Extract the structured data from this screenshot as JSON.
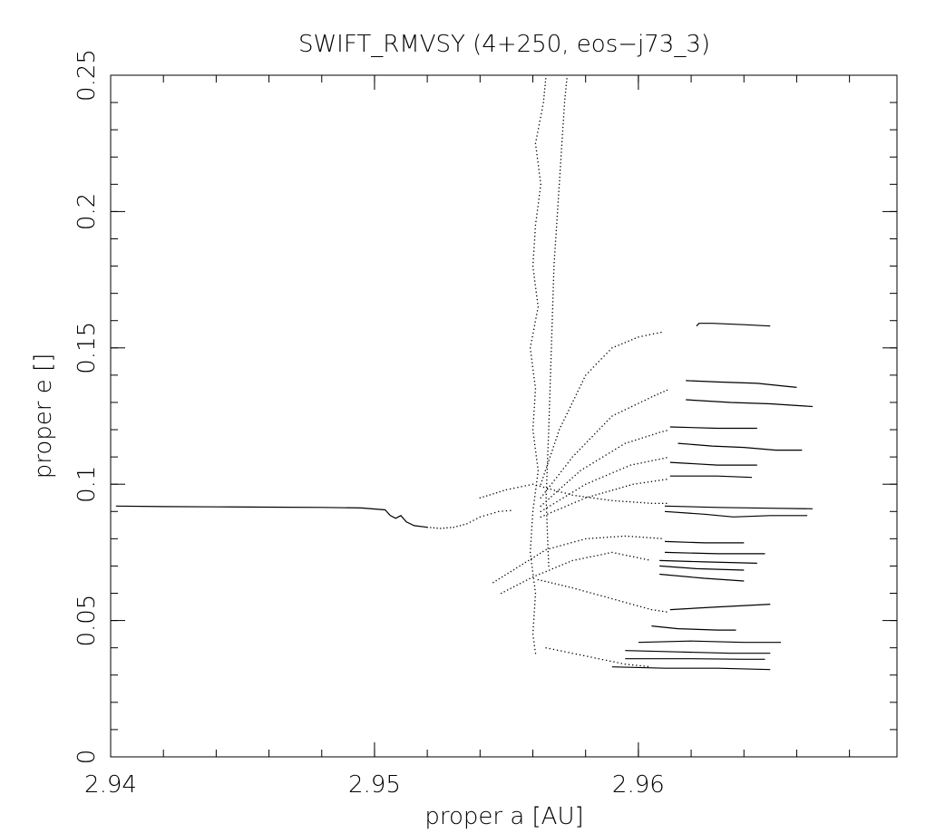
{
  "chart_data": {
    "type": "scatter",
    "title": "SWIFT_RMVSY (4+250, eos−j73_3)",
    "xlabel": "proper a [AU]",
    "ylabel": "proper e []",
    "xlim": [
      2.94,
      2.9698
    ],
    "ylim": [
      0,
      0.25
    ],
    "x_ticks": [
      {
        "value": 2.94,
        "label": "2.94"
      },
      {
        "value": 2.95,
        "label": "2.95"
      },
      {
        "value": 2.96,
        "label": "2.96"
      }
    ],
    "y_ticks": [
      {
        "value": 0,
        "label": "0"
      },
      {
        "value": 0.05,
        "label": "0.05"
      },
      {
        "value": 0.1,
        "label": "0.1"
      },
      {
        "value": 0.15,
        "label": "0.15"
      },
      {
        "value": 0.2,
        "label": "0.2"
      },
      {
        "value": 0.25,
        "label": "0.25"
      }
    ],
    "x_minor_step": 0.002,
    "y_minor_step": 0.01,
    "grid": false,
    "legend": "none",
    "series": [
      {
        "name": "",
        "style": "line",
        "points": [
          [
            2.9402,
            0.092
          ],
          [
            2.942,
            0.0918
          ],
          [
            2.944,
            0.0917
          ],
          [
            2.946,
            0.0916
          ],
          [
            2.948,
            0.0915
          ],
          [
            2.9495,
            0.0913
          ],
          [
            2.9504,
            0.0906
          ],
          [
            2.9506,
            0.0885
          ],
          [
            2.9508,
            0.0875
          ],
          [
            2.951,
            0.0885
          ],
          [
            2.9512,
            0.0862
          ],
          [
            2.9515,
            0.0848
          ],
          [
            2.952,
            0.0842
          ]
        ]
      },
      {
        "name": "",
        "style": "dots",
        "points": [
          [
            2.952,
            0.0842
          ],
          [
            2.9525,
            0.0838
          ],
          [
            2.953,
            0.0842
          ],
          [
            2.9535,
            0.0855
          ],
          [
            2.954,
            0.088
          ],
          [
            2.9547,
            0.09
          ],
          [
            2.9553,
            0.0905
          ]
        ]
      },
      {
        "name": "",
        "style": "dots",
        "points": [
          [
            2.9561,
            0.038
          ],
          [
            2.956,
            0.045
          ],
          [
            2.9561,
            0.06
          ],
          [
            2.9559,
            0.075
          ],
          [
            2.956,
            0.09
          ],
          [
            2.9562,
            0.105
          ],
          [
            2.956,
            0.12
          ],
          [
            2.9561,
            0.135
          ],
          [
            2.9559,
            0.15
          ],
          [
            2.9562,
            0.165
          ],
          [
            2.956,
            0.18
          ],
          [
            2.9561,
            0.195
          ],
          [
            2.9563,
            0.21
          ],
          [
            2.9561,
            0.225
          ],
          [
            2.9564,
            0.24
          ],
          [
            2.9565,
            0.25
          ]
        ]
      },
      {
        "name": "",
        "style": "dots",
        "points": [
          [
            2.9566,
            0.07
          ],
          [
            2.9565,
            0.095
          ],
          [
            2.9566,
            0.12
          ],
          [
            2.9567,
            0.15
          ],
          [
            2.9568,
            0.18
          ],
          [
            2.957,
            0.21
          ],
          [
            2.9572,
            0.24
          ],
          [
            2.9573,
            0.25
          ]
        ]
      },
      {
        "name": "",
        "style": "dots",
        "points": [
          [
            2.9563,
            0.1
          ],
          [
            2.957,
            0.12
          ],
          [
            2.958,
            0.14
          ],
          [
            2.959,
            0.15
          ],
          [
            2.96,
            0.154
          ],
          [
            2.961,
            0.156
          ]
        ]
      },
      {
        "name": "",
        "style": "dots",
        "points": [
          [
            2.9563,
            0.095
          ],
          [
            2.9575,
            0.11
          ],
          [
            2.959,
            0.125
          ],
          [
            2.9605,
            0.132
          ],
          [
            2.9612,
            0.135
          ]
        ]
      },
      {
        "name": "",
        "style": "dots",
        "points": [
          [
            2.9563,
            0.092
          ],
          [
            2.9578,
            0.105
          ],
          [
            2.9595,
            0.115
          ],
          [
            2.9608,
            0.119
          ],
          [
            2.9612,
            0.12
          ]
        ]
      },
      {
        "name": "",
        "style": "dots",
        "points": [
          [
            2.9563,
            0.09
          ],
          [
            2.958,
            0.1
          ],
          [
            2.9597,
            0.107
          ],
          [
            2.9612,
            0.11
          ]
        ]
      },
      {
        "name": "",
        "style": "dots",
        "points": [
          [
            2.9563,
            0.088
          ],
          [
            2.958,
            0.095
          ],
          [
            2.9598,
            0.1
          ],
          [
            2.9612,
            0.102
          ]
        ]
      },
      {
        "name": "",
        "style": "dots",
        "points": [
          [
            2.954,
            0.095
          ],
          [
            2.955,
            0.098
          ],
          [
            2.956,
            0.1
          ],
          [
            2.9575,
            0.096
          ],
          [
            2.959,
            0.094
          ],
          [
            2.9605,
            0.093
          ],
          [
            2.9612,
            0.093
          ]
        ]
      },
      {
        "name": "",
        "style": "dots",
        "points": [
          [
            2.9545,
            0.064
          ],
          [
            2.9555,
            0.07
          ],
          [
            2.9565,
            0.076
          ],
          [
            2.958,
            0.08
          ],
          [
            2.9595,
            0.081
          ],
          [
            2.961,
            0.08
          ]
        ]
      },
      {
        "name": "",
        "style": "dots",
        "points": [
          [
            2.9548,
            0.06
          ],
          [
            2.956,
            0.066
          ],
          [
            2.9575,
            0.072
          ],
          [
            2.959,
            0.075
          ],
          [
            2.9605,
            0.072
          ]
        ]
      },
      {
        "name": "",
        "style": "dots",
        "points": [
          [
            2.9562,
            0.065
          ],
          [
            2.9575,
            0.062
          ],
          [
            2.959,
            0.058
          ],
          [
            2.9605,
            0.054
          ],
          [
            2.9612,
            0.053
          ]
        ]
      },
      {
        "name": "",
        "style": "dots",
        "points": [
          [
            2.9565,
            0.04
          ],
          [
            2.9575,
            0.038
          ],
          [
            2.9585,
            0.036
          ],
          [
            2.9595,
            0.034
          ],
          [
            2.9605,
            0.033
          ]
        ]
      },
      {
        "name": "",
        "style": "line",
        "points": [
          [
            2.9622,
            0.158
          ],
          [
            2.9623,
            0.159
          ],
          [
            2.9628,
            0.159
          ],
          [
            2.964,
            0.1585
          ],
          [
            2.965,
            0.158
          ]
        ]
      },
      {
        "name": "",
        "style": "line",
        "points": [
          [
            2.9618,
            0.138
          ],
          [
            2.963,
            0.1375
          ],
          [
            2.9645,
            0.137
          ],
          [
            2.966,
            0.1355
          ]
        ]
      },
      {
        "name": "",
        "style": "line",
        "points": [
          [
            2.9618,
            0.131
          ],
          [
            2.9635,
            0.13
          ],
          [
            2.965,
            0.1295
          ],
          [
            2.9666,
            0.1285
          ]
        ]
      },
      {
        "name": "",
        "style": "line",
        "points": [
          [
            2.9612,
            0.121
          ],
          [
            2.963,
            0.1205
          ],
          [
            2.9645,
            0.1205
          ]
        ]
      },
      {
        "name": "",
        "style": "line",
        "points": [
          [
            2.9615,
            0.115
          ],
          [
            2.9628,
            0.114
          ],
          [
            2.964,
            0.1135
          ],
          [
            2.9652,
            0.1125
          ],
          [
            2.9662,
            0.1125
          ]
        ]
      },
      {
        "name": "",
        "style": "line",
        "points": [
          [
            2.9612,
            0.108
          ],
          [
            2.963,
            0.107
          ],
          [
            2.9645,
            0.107
          ]
        ]
      },
      {
        "name": "",
        "style": "line",
        "points": [
          [
            2.9612,
            0.103
          ],
          [
            2.963,
            0.103
          ],
          [
            2.9643,
            0.1025
          ]
        ]
      },
      {
        "name": "",
        "style": "line",
        "points": [
          [
            2.961,
            0.092
          ],
          [
            2.963,
            0.0915
          ],
          [
            2.965,
            0.0912
          ],
          [
            2.9666,
            0.091
          ]
        ]
      },
      {
        "name": "",
        "style": "line",
        "points": [
          [
            2.961,
            0.09
          ],
          [
            2.9625,
            0.089
          ],
          [
            2.9636,
            0.088
          ],
          [
            2.965,
            0.0885
          ],
          [
            2.9664,
            0.0885
          ]
        ]
      },
      {
        "name": "",
        "style": "line",
        "points": [
          [
            2.961,
            0.079
          ],
          [
            2.9625,
            0.0785
          ],
          [
            2.964,
            0.0785
          ]
        ]
      },
      {
        "name": "",
        "style": "line",
        "points": [
          [
            2.961,
            0.075
          ],
          [
            2.963,
            0.0745
          ],
          [
            2.9648,
            0.0745
          ]
        ]
      },
      {
        "name": "",
        "style": "line",
        "points": [
          [
            2.9608,
            0.072
          ],
          [
            2.9625,
            0.0715
          ],
          [
            2.9645,
            0.071
          ]
        ]
      },
      {
        "name": "",
        "style": "line",
        "points": [
          [
            2.9608,
            0.07
          ],
          [
            2.9622,
            0.069
          ],
          [
            2.964,
            0.0685
          ]
        ]
      },
      {
        "name": "",
        "style": "line",
        "points": [
          [
            2.9608,
            0.067
          ],
          [
            2.9625,
            0.0655
          ],
          [
            2.964,
            0.0645
          ]
        ]
      },
      {
        "name": "",
        "style": "line",
        "points": [
          [
            2.9612,
            0.054
          ],
          [
            2.963,
            0.055
          ],
          [
            2.965,
            0.056
          ]
        ]
      },
      {
        "name": "",
        "style": "line",
        "points": [
          [
            2.9605,
            0.048
          ],
          [
            2.9615,
            0.047
          ],
          [
            2.963,
            0.0465
          ],
          [
            2.9637,
            0.0465
          ]
        ]
      },
      {
        "name": "",
        "style": "line",
        "points": [
          [
            2.96,
            0.042
          ],
          [
            2.962,
            0.0425
          ],
          [
            2.964,
            0.042
          ],
          [
            2.9654,
            0.042
          ]
        ]
      },
      {
        "name": "",
        "style": "line",
        "points": [
          [
            2.9595,
            0.039
          ],
          [
            2.9615,
            0.0385
          ],
          [
            2.9635,
            0.038
          ],
          [
            2.965,
            0.038
          ]
        ]
      },
      {
        "name": "",
        "style": "line",
        "points": [
          [
            2.9595,
            0.036
          ],
          [
            2.962,
            0.036
          ],
          [
            2.964,
            0.0358
          ],
          [
            2.9648,
            0.0358
          ]
        ]
      },
      {
        "name": "",
        "style": "line",
        "points": [
          [
            2.959,
            0.033
          ],
          [
            2.961,
            0.0325
          ],
          [
            2.963,
            0.0325
          ],
          [
            2.965,
            0.032
          ]
        ]
      }
    ]
  }
}
